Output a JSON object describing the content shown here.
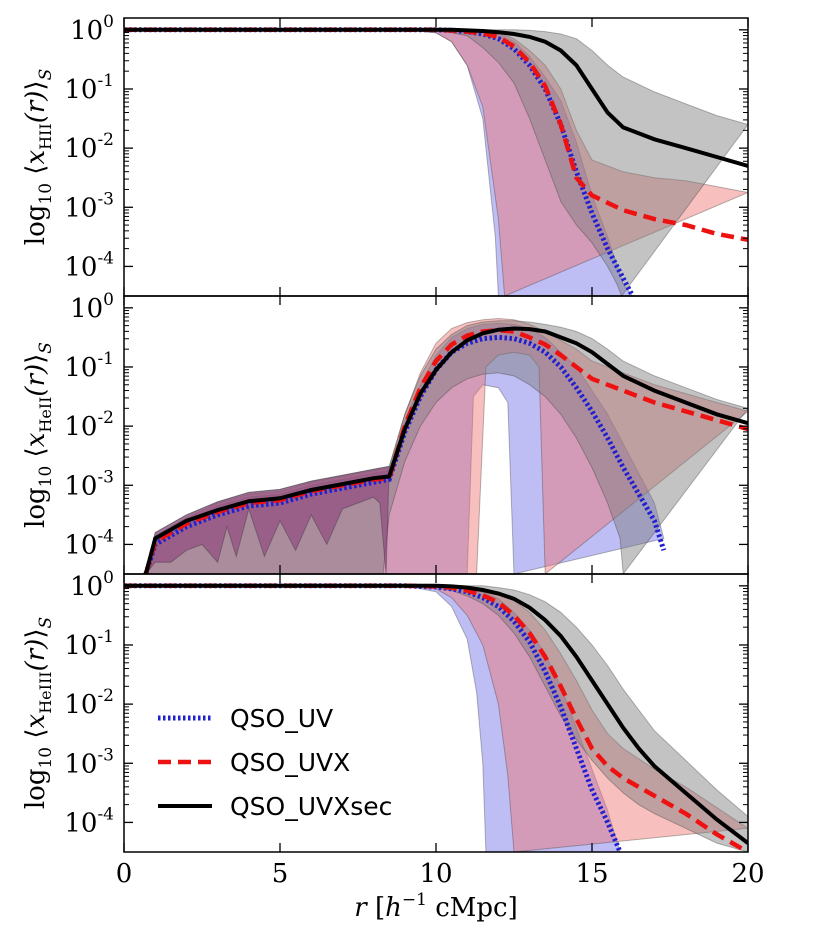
{
  "chart_data": [
    {
      "type": "area",
      "panel": "top",
      "ylabel": "log10 <x_HII(r)>_S",
      "ylabel_parts": {
        "prefix": "log",
        "sub": "10",
        "var": "x",
        "var_sub": "HII",
        "arg": "(r)",
        "outer_sub": "S"
      },
      "xlim": [
        0,
        20
      ],
      "ylim_log10": [
        -4.5,
        0.2
      ],
      "yticks": [
        {
          "exp": 0,
          "label": "10",
          "sup": "0"
        },
        {
          "exp": -1,
          "label": "10",
          "sup": "-1"
        },
        {
          "exp": -2,
          "label": "10",
          "sup": "-2"
        },
        {
          "exp": -3,
          "label": "10",
          "sup": "-3"
        },
        {
          "exp": -4,
          "label": "10",
          "sup": "-4"
        }
      ],
      "series": [
        {
          "name": "QSO_UV",
          "color": "#2020d0",
          "band_color": "#6f6fe8",
          "x": [
            0,
            9,
            10,
            10.5,
            11,
            11.5,
            12,
            12.5,
            13,
            13.5,
            14,
            14.5,
            15,
            15.5,
            16,
            16.3
          ],
          "y": [
            0,
            0,
            0,
            -0.01,
            -0.03,
            -0.07,
            -0.15,
            -0.32,
            -0.6,
            -1.0,
            -1.6,
            -2.4,
            -3.1,
            -3.7,
            -4.2,
            -4.5
          ],
          "band_upper": [
            0,
            0,
            0,
            0,
            0,
            -0.01,
            -0.05,
            -0.2,
            -0.45,
            -0.8,
            -1.2,
            -1.9,
            -2.8,
            -3.5,
            -4.3,
            -4.5
          ],
          "band_lower_x": [
            0,
            9,
            10,
            10.5,
            11,
            11.5,
            11.9,
            12.0
          ],
          "band_lower": [
            0,
            0,
            -0.05,
            -0.2,
            -0.6,
            -1.5,
            -3.5,
            -4.5
          ]
        },
        {
          "name": "QSO_UVX",
          "color": "#ee1111",
          "band_color": "#f07070",
          "x": [
            0,
            9,
            10,
            10.5,
            11,
            11.5,
            12,
            12.5,
            13,
            13.5,
            14,
            14.5,
            15,
            16,
            17,
            18,
            19,
            20
          ],
          "y": [
            0,
            0,
            0,
            -0.01,
            -0.03,
            -0.06,
            -0.12,
            -0.28,
            -0.55,
            -0.95,
            -1.6,
            -2.5,
            -2.8,
            -3.05,
            -3.2,
            -3.3,
            -3.45,
            -3.55
          ],
          "band_upper": [
            0,
            0,
            0,
            0,
            0,
            0,
            -0.04,
            -0.15,
            -0.35,
            -0.6,
            -1.0,
            -1.7,
            -2.2,
            -2.4,
            -2.5,
            -2.55,
            -2.65,
            -2.75
          ],
          "band_lower_x": [
            0,
            9,
            10,
            10.5,
            11,
            11.5,
            12.0,
            12.2
          ],
          "band_lower": [
            0,
            0,
            -0.05,
            -0.2,
            -0.6,
            -1.3,
            -3.2,
            -4.5
          ]
        },
        {
          "name": "QSO_UVXsec",
          "color": "#000000",
          "band_color": "#7a7a7a",
          "x": [
            0,
            9,
            10,
            10.5,
            11,
            11.5,
            12,
            12.5,
            13,
            13.5,
            14,
            14.5,
            15,
            15.5,
            16,
            17,
            18,
            19,
            20
          ],
          "y": [
            0,
            0,
            0,
            0,
            -0.01,
            -0.02,
            -0.04,
            -0.07,
            -0.12,
            -0.2,
            -0.35,
            -0.6,
            -1.0,
            -1.4,
            -1.65,
            -1.85,
            -2.0,
            -2.15,
            -2.3
          ],
          "band_upper": [
            0,
            0,
            0,
            0,
            0,
            0,
            0,
            0,
            -0.01,
            -0.03,
            -0.07,
            -0.15,
            -0.35,
            -0.6,
            -0.8,
            -1.05,
            -1.25,
            -1.45,
            -1.6
          ],
          "band_lower_x": [
            0,
            9,
            10,
            10.5,
            11,
            11.5,
            12,
            12.5,
            13,
            13.5,
            14,
            14.5,
            15,
            15.5,
            15.8,
            15.95
          ],
          "band_lower": [
            0,
            0,
            -0.02,
            -0.05,
            -0.1,
            -0.3,
            -0.55,
            -0.9,
            -1.5,
            -2.2,
            -2.9,
            -3.3,
            -3.6,
            -4.0,
            -4.3,
            -4.5
          ]
        }
      ]
    },
    {
      "type": "area",
      "panel": "middle",
      "ylabel": "log10 <x_HeII(r)>_S",
      "ylabel_parts": {
        "prefix": "log",
        "sub": "10",
        "var": "x",
        "var_sub": "HeII",
        "arg": "(r)",
        "outer_sub": "S"
      },
      "xlim": [
        0,
        20
      ],
      "ylim_log10": [
        -4.5,
        0.2
      ],
      "yticks": [
        {
          "exp": 0,
          "label": "10",
          "sup": "0"
        },
        {
          "exp": -1,
          "label": "10",
          "sup": "-1"
        },
        {
          "exp": -2,
          "label": "10",
          "sup": "-2"
        },
        {
          "exp": -3,
          "label": "10",
          "sup": "-3"
        },
        {
          "exp": -4,
          "label": "10",
          "sup": "-4"
        }
      ],
      "series": [
        {
          "name": "QSO_UV",
          "color": "#2020d0",
          "band_color": "#6f6fe8",
          "x": [
            0.7,
            1,
            2,
            3,
            4,
            5,
            6,
            7,
            8,
            8.5,
            9,
            9.5,
            10,
            10.5,
            11,
            11.5,
            12,
            12.5,
            13,
            13.5,
            14,
            14.5,
            15,
            15.5,
            16,
            16.5,
            17,
            17.3
          ],
          "y": [
            -4.5,
            -4.0,
            -3.7,
            -3.5,
            -3.35,
            -3.3,
            -3.15,
            -3.05,
            -2.95,
            -2.9,
            -2.1,
            -1.5,
            -1.05,
            -0.75,
            -0.6,
            -0.52,
            -0.5,
            -0.52,
            -0.6,
            -0.75,
            -1.0,
            -1.35,
            -1.75,
            -2.2,
            -2.7,
            -3.15,
            -3.6,
            -4.1
          ],
          "band_upper": [
            -4.5,
            -3.9,
            -3.6,
            -3.35,
            -3.2,
            -3.15,
            -3.0,
            -2.9,
            -2.8,
            -2.75,
            -1.9,
            -1.3,
            -0.8,
            -0.5,
            -0.35,
            -0.28,
            -0.26,
            -0.28,
            -0.35,
            -0.5,
            -0.75,
            -1.0,
            -1.4,
            -1.8,
            -2.3,
            -2.8,
            -3.3,
            -3.9
          ],
          "band_lower_x": [
            11.0,
            11.2,
            11.5,
            12.0,
            12.3,
            12.5
          ],
          "band_lower": [
            -4.5,
            -1.5,
            -1.3,
            -1.35,
            -1.6,
            -4.5
          ]
        },
        {
          "name": "QSO_UVX",
          "color": "#ee1111",
          "band_color": "#f07070",
          "x": [
            0.7,
            1,
            2,
            3,
            4,
            5,
            6,
            7,
            8,
            8.5,
            9,
            9.5,
            10,
            10.5,
            11,
            11.5,
            12,
            12.5,
            13,
            13.5,
            14,
            14.5,
            15,
            16,
            17,
            18,
            19,
            20
          ],
          "y": [
            -4.5,
            -3.95,
            -3.65,
            -3.45,
            -3.3,
            -3.25,
            -3.1,
            -3.0,
            -2.9,
            -2.88,
            -2.0,
            -1.35,
            -0.9,
            -0.62,
            -0.47,
            -0.4,
            -0.38,
            -0.4,
            -0.5,
            -0.62,
            -0.8,
            -1.0,
            -1.2,
            -1.4,
            -1.6,
            -1.75,
            -1.9,
            -2.05
          ],
          "band_upper": [
            -4.5,
            -3.85,
            -3.55,
            -3.3,
            -3.15,
            -3.1,
            -2.95,
            -2.85,
            -2.75,
            -2.7,
            -1.8,
            -1.1,
            -0.6,
            -0.35,
            -0.25,
            -0.2,
            -0.18,
            -0.2,
            -0.28,
            -0.4,
            -0.55,
            -0.7,
            -0.9,
            -1.1,
            -1.3,
            -1.45,
            -1.6,
            -1.75
          ],
          "band_lower_x": [
            11.3,
            11.6,
            12.0,
            12.5,
            13.0,
            13.3,
            13.5
          ],
          "band_lower": [
            -4.5,
            -1.0,
            -0.8,
            -0.75,
            -0.8,
            -1.0,
            -4.5
          ]
        },
        {
          "name": "QSO_UVXsec",
          "color": "#000000",
          "band_color": "#7a7a7a",
          "x": [
            0.7,
            1,
            2,
            3,
            4,
            5,
            6,
            7,
            8,
            8.5,
            9,
            9.5,
            10,
            10.5,
            11,
            11.5,
            12,
            12.5,
            13,
            13.5,
            14,
            14.5,
            15,
            15.5,
            16,
            17,
            18,
            19,
            20
          ],
          "y": [
            -4.5,
            -3.9,
            -3.6,
            -3.42,
            -3.27,
            -3.22,
            -3.08,
            -2.98,
            -2.88,
            -2.85,
            -2.05,
            -1.45,
            -1.05,
            -0.75,
            -0.55,
            -0.43,
            -0.37,
            -0.35,
            -0.36,
            -0.4,
            -0.5,
            -0.6,
            -0.75,
            -0.95,
            -1.15,
            -1.4,
            -1.6,
            -1.8,
            -1.95
          ],
          "band_upper": [
            -4.5,
            -3.8,
            -3.5,
            -3.28,
            -3.12,
            -3.07,
            -2.93,
            -2.83,
            -2.73,
            -2.68,
            -1.8,
            -1.15,
            -0.7,
            -0.45,
            -0.3,
            -0.24,
            -0.22,
            -0.22,
            -0.24,
            -0.28,
            -0.33,
            -0.4,
            -0.52,
            -0.7,
            -0.9,
            -1.15,
            -1.35,
            -1.55,
            -1.7
          ],
          "band_lower_x": [
            8.3,
            8.5,
            9.0,
            9.5,
            10.0,
            10.5,
            11.0,
            11.5,
            12.0,
            12.5,
            13.0,
            13.5,
            14.0,
            14.5,
            15.0,
            15.5,
            15.9,
            16.0
          ],
          "band_lower": [
            -4.5,
            -3.5,
            -2.6,
            -2.0,
            -1.6,
            -1.35,
            -1.2,
            -1.12,
            -1.1,
            -1.15,
            -1.3,
            -1.5,
            -1.8,
            -2.2,
            -2.7,
            -3.3,
            -3.9,
            -4.5
          ]
        }
      ],
      "shared_band_lower": {
        "x": [
          0.7,
          1.0,
          1.5,
          2.0,
          2.5,
          3.0,
          3.3,
          3.6,
          4.0,
          4.5,
          5.0,
          5.5,
          6.0,
          6.5,
          7.0,
          7.5,
          8.0,
          8.2,
          8.4
        ],
        "y": [
          -4.5,
          -4.3,
          -4.3,
          -4.1,
          -4.0,
          -4.3,
          -3.7,
          -4.2,
          -3.4,
          -4.2,
          -3.6,
          -4.1,
          -3.5,
          -4.0,
          -3.4,
          -3.3,
          -3.2,
          -3.3,
          -4.5
        ]
      }
    },
    {
      "type": "area",
      "panel": "bottom",
      "ylabel": "log10 <x_HeIII(r)>_S",
      "ylabel_parts": {
        "prefix": "log",
        "sub": "10",
        "var": "x",
        "var_sub": "HeIII",
        "arg": "(r)",
        "outer_sub": "S"
      },
      "xlim": [
        0,
        20
      ],
      "ylim_log10": [
        -4.5,
        0.2
      ],
      "yticks": [
        {
          "exp": 0,
          "label": "10",
          "sup": "0"
        },
        {
          "exp": -1,
          "label": "10",
          "sup": "-1"
        },
        {
          "exp": -2,
          "label": "10",
          "sup": "-2"
        },
        {
          "exp": -3,
          "label": "10",
          "sup": "-3"
        },
        {
          "exp": -4,
          "label": "10",
          "sup": "-4"
        }
      ],
      "xticks": [
        0,
        5,
        10,
        15,
        20
      ],
      "xlabel": "r [h⁻¹ cMpc]",
      "legend": {
        "placement": "lower-left",
        "entries": [
          "QSO_UV",
          "QSO_UVX",
          "QSO_UVXsec"
        ]
      },
      "series": [
        {
          "name": "QSO_UV",
          "color": "#2020d0",
          "band_color": "#6f6fe8",
          "x": [
            0,
            9,
            10,
            10.5,
            11,
            11.5,
            12,
            12.5,
            13,
            13.5,
            14,
            14.5,
            15,
            15.5,
            15.9
          ],
          "y": [
            0,
            0,
            -0.02,
            -0.05,
            -0.1,
            -0.2,
            -0.35,
            -0.6,
            -0.95,
            -1.45,
            -2.05,
            -2.75,
            -3.45,
            -4.0,
            -4.5
          ],
          "band_upper": [
            0,
            0,
            0,
            -0.01,
            -0.04,
            -0.1,
            -0.22,
            -0.45,
            -0.75,
            -1.15,
            -1.7,
            -2.4,
            -3.1,
            -3.8,
            -4.5
          ],
          "band_lower_x": [
            0,
            9,
            10,
            10.5,
            11,
            11.3,
            11.5,
            11.6
          ],
          "band_lower": [
            0,
            0,
            -0.1,
            -0.35,
            -0.9,
            -1.8,
            -3.0,
            -4.5
          ]
        },
        {
          "name": "QSO_UVX",
          "color": "#ee1111",
          "band_color": "#f07070",
          "x": [
            0,
            9,
            10,
            10.5,
            11,
            11.5,
            12,
            12.5,
            13,
            13.5,
            14,
            14.5,
            15,
            15.5,
            16,
            17,
            18,
            19,
            20
          ],
          "y": [
            0,
            0,
            -0.01,
            -0.03,
            -0.08,
            -0.16,
            -0.28,
            -0.5,
            -0.8,
            -1.2,
            -1.7,
            -2.25,
            -2.75,
            -3.05,
            -3.25,
            -3.55,
            -3.85,
            -4.2,
            -4.5
          ],
          "band_upper": [
            0,
            0,
            0,
            0,
            -0.02,
            -0.06,
            -0.12,
            -0.25,
            -0.45,
            -0.75,
            -1.15,
            -1.6,
            -2.1,
            -2.5,
            -2.75,
            -3.1,
            -3.4,
            -3.75,
            -4.1
          ],
          "band_lower_x": [
            0,
            9,
            10,
            10.5,
            11,
            11.5,
            12,
            12.3,
            12.5
          ],
          "band_lower": [
            0,
            0,
            -0.05,
            -0.2,
            -0.5,
            -1.0,
            -2.0,
            -3.2,
            -4.5
          ]
        },
        {
          "name": "QSO_UVXsec",
          "color": "#000000",
          "band_color": "#7a7a7a",
          "x": [
            0,
            9,
            10,
            10.5,
            11,
            11.5,
            12,
            12.5,
            13,
            13.5,
            14,
            14.5,
            15,
            15.5,
            16,
            16.5,
            17,
            18,
            19,
            20
          ],
          "y": [
            0,
            0,
            0,
            -0.01,
            -0.03,
            -0.07,
            -0.13,
            -0.22,
            -0.37,
            -0.58,
            -0.85,
            -1.2,
            -1.6,
            -2.0,
            -2.4,
            -2.75,
            -3.05,
            -3.5,
            -3.95,
            -4.35
          ],
          "band_upper": [
            0,
            0,
            0,
            0,
            0,
            0,
            -0.03,
            -0.07,
            -0.15,
            -0.27,
            -0.45,
            -0.7,
            -1.0,
            -1.35,
            -1.75,
            -2.1,
            -2.45,
            -2.95,
            -3.45,
            -3.9
          ],
          "band_lower_x": [
            0,
            9,
            10,
            10.5,
            11,
            11.5,
            12,
            12.5,
            13,
            13.5,
            14,
            14.5,
            15,
            15.5,
            16,
            16.5,
            17,
            18,
            19,
            20
          ],
          "band_lower": [
            0,
            0,
            -0.03,
            -0.08,
            -0.17,
            -0.3,
            -0.5,
            -0.8,
            -1.2,
            -1.7,
            -2.2,
            -2.6,
            -2.95,
            -3.25,
            -3.5,
            -3.7,
            -3.85,
            -4.1,
            -4.35,
            -4.5
          ]
        }
      ]
    }
  ]
}
